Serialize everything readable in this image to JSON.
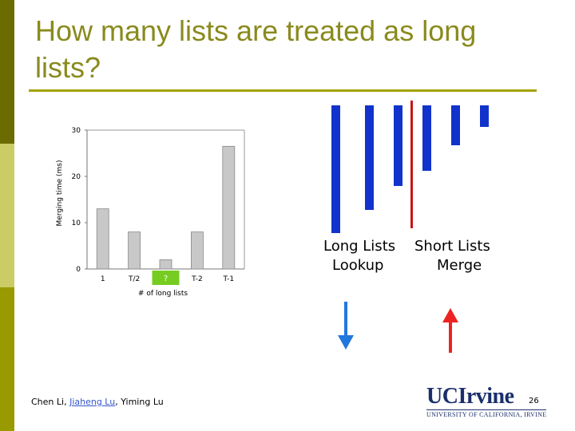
{
  "slide": {
    "title": "How many lists are treated as long lists?",
    "page_number": "26",
    "footer": {
      "author1": "Chen Li, ",
      "author2_link": "Jiaheng Lu",
      "author3": ", Yiming Lu"
    },
    "logo": {
      "main": "UCIrvine",
      "sub": "UNIVERSITY OF CALIFORNIA, IRVINE"
    },
    "colors": {
      "sidebar_dark": "#6b6b00",
      "sidebar_light": "#cccc66",
      "sidebar_mid": "#999900",
      "title": "#8a8a1e",
      "bar_blue": "#1133cc",
      "divider_red": "#cc1111",
      "question_box": "#77cc22"
    }
  },
  "chart_data": {
    "type": "bar",
    "title": "",
    "ylabel": "Merging time (ms)",
    "xlabel": "# of long lists",
    "ylim": [
      0,
      30
    ],
    "yticks": [
      0,
      10,
      20,
      30
    ],
    "categories": [
      "1",
      "T/2",
      "?",
      "T-2",
      "T-1"
    ],
    "values": [
      13,
      8,
      2,
      8,
      26.5
    ],
    "question_label": "?",
    "grid": false
  },
  "diagram": {
    "long_label_1": "Long Lists",
    "long_label_2": "Lookup",
    "short_label_1": "Short Lists",
    "short_label_2": "Merge",
    "list_bar_fractions": [
      1.0,
      0.82,
      0.63,
      0.51,
      0.31,
      0.17
    ],
    "long_list_count": 3
  }
}
